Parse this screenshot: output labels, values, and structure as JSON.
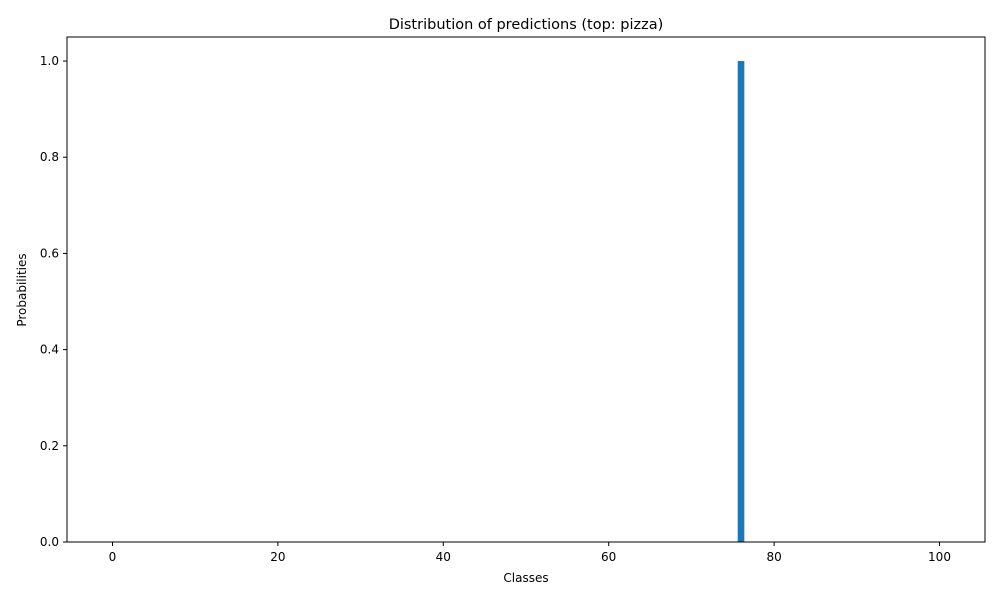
{
  "chart_data": {
    "type": "bar",
    "title": "Distribution of predictions (top: pizza)",
    "xlabel": "Classes",
    "ylabel": "Probabilities",
    "num_classes": 101,
    "bar_color": "#1f77b4",
    "bars": [
      {
        "x": 76,
        "value": 1.0
      }
    ],
    "xlim": [
      -5.5,
      105.5
    ],
    "ylim": [
      0,
      1.05
    ],
    "xticks": [
      0,
      20,
      40,
      60,
      80,
      100
    ],
    "xtick_labels": [
      "0",
      "20",
      "40",
      "60",
      "80",
      "100"
    ],
    "yticks": [
      0.0,
      0.2,
      0.4,
      0.6,
      0.8,
      1.0
    ],
    "ytick_labels": [
      "0.0",
      "0.2",
      "0.4",
      "0.6",
      "0.8",
      "1.0"
    ],
    "grid": false,
    "legend": "none"
  }
}
